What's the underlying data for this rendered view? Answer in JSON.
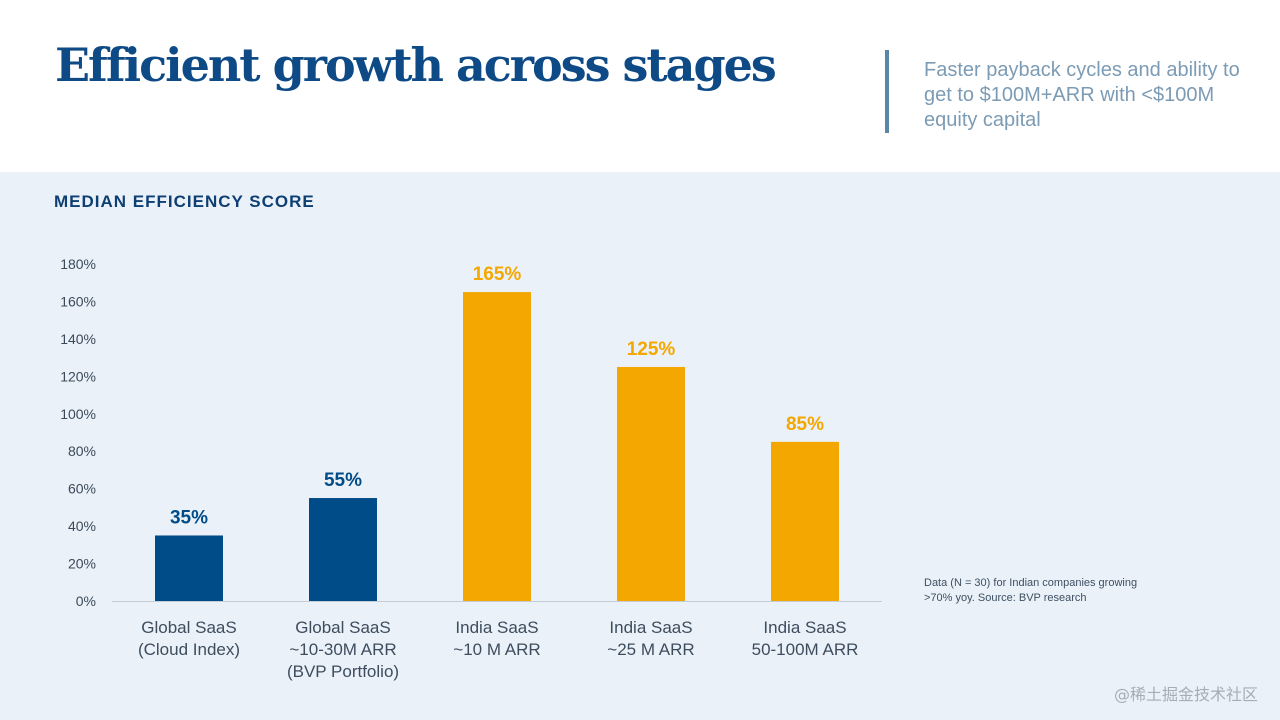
{
  "page": {
    "title": "Efficient growth across stages",
    "subtitle": "Faster payback cycles and ability to get to $100M+ARR with <$100M equity capital",
    "section_label": "MEDIAN EFFICIENCY SCORE",
    "note": "Data (N = 30) for Indian companies growing >70% yoy. Source: BVP research",
    "watermark": "@稀土掘金技术社区"
  },
  "chart_data": {
    "type": "bar",
    "title": "",
    "xlabel": "",
    "ylabel": "",
    "categories": [
      [
        "Global SaaS",
        "(Cloud Index)"
      ],
      [
        "Global SaaS",
        "~10-30M ARR",
        "(BVP Portfolio)"
      ],
      [
        "India SaaS",
        "~10 M ARR"
      ],
      [
        "India SaaS",
        "~25 M ARR"
      ],
      [
        "India SaaS",
        "50-100M ARR"
      ]
    ],
    "values": [
      35,
      55,
      165,
      125,
      85
    ],
    "value_labels": [
      "35%",
      "55%",
      "165%",
      "125%",
      "85%"
    ],
    "colors": [
      "#004c89",
      "#004c89",
      "#f4a700",
      "#f4a700",
      "#f4a700"
    ],
    "ylim": [
      0,
      180
    ],
    "yticks": [
      0,
      20,
      40,
      60,
      80,
      100,
      120,
      140,
      160,
      180
    ],
    "ytick_labels": [
      "0%",
      "20%",
      "40%",
      "60%",
      "80%",
      "100%",
      "120%",
      "140%",
      "160%",
      "180%"
    ],
    "grid": false,
    "legend": "none"
  },
  "colors": {
    "title": "#0d4a86",
    "subtitle": "#7c9bb4",
    "panel_background": "#ebf1f8",
    "global_bar": "#004c89",
    "india_bar": "#f4a700"
  }
}
